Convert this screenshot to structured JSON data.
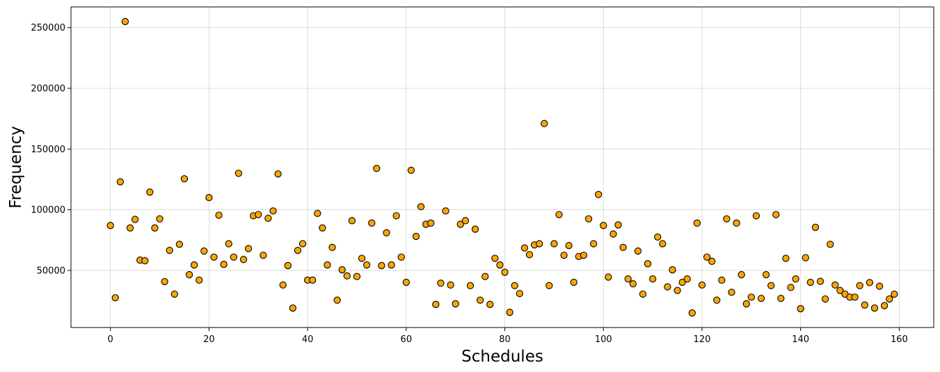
{
  "chart_data": {
    "type": "scatter",
    "title": "",
    "xlabel": "Schedules",
    "ylabel": "Frequency",
    "xlim": [
      -8,
      167
    ],
    "ylim": [
      3000,
      267000
    ],
    "xticks": [
      0,
      20,
      40,
      60,
      80,
      100,
      120,
      140,
      160
    ],
    "yticks": [
      50000,
      100000,
      150000,
      200000,
      250000
    ],
    "xtick_labels": [
      "0",
      "20",
      "40",
      "60",
      "80",
      "100",
      "120",
      "140",
      "160"
    ],
    "ytick_labels": [
      "50000",
      "100000",
      "150000",
      "200000",
      "250000"
    ],
    "grid": true,
    "marker_color": "#FFA500",
    "marker_edge_color": "#000000",
    "series": [
      {
        "x": [
          0,
          1,
          2,
          3,
          4,
          5,
          6,
          7,
          8,
          9,
          10,
          11,
          12,
          13,
          14,
          15,
          16,
          17,
          18,
          19,
          20,
          21,
          22,
          23,
          24,
          25,
          26,
          27,
          28,
          29,
          30,
          31,
          32,
          33,
          34,
          35,
          36,
          37,
          38,
          39,
          40,
          41,
          42,
          43,
          44,
          45,
          46,
          47,
          48,
          49,
          50,
          51,
          52,
          53,
          54,
          55,
          56,
          57,
          58,
          59,
          60,
          61,
          62,
          63,
          64,
          65,
          66,
          67,
          68,
          69,
          70,
          71,
          72,
          73,
          74,
          75,
          76,
          77,
          78,
          79,
          80,
          81,
          82,
          83,
          84,
          85,
          86,
          87,
          88,
          89,
          90,
          91,
          92,
          93,
          94,
          95,
          96,
          97,
          98,
          99,
          100,
          101,
          102,
          103,
          104,
          105,
          106,
          107,
          108,
          109,
          110,
          111,
          112,
          113,
          114,
          115,
          116,
          117,
          118,
          119,
          120,
          121,
          122,
          123,
          124,
          125,
          126,
          127,
          128,
          129,
          130,
          131,
          132,
          133,
          134,
          135,
          136,
          137,
          138,
          139,
          140,
          141,
          142,
          143,
          144,
          145,
          146,
          147,
          148,
          149,
          150,
          151,
          152,
          153,
          154,
          155,
          156,
          157,
          158,
          159
        ],
        "y": [
          87000,
          27500,
          123000,
          255000,
          85000,
          92000,
          58500,
          58000,
          114500,
          85000,
          92500,
          40800,
          66500,
          30500,
          71500,
          125500,
          46500,
          54500,
          42000,
          66000,
          110000,
          61000,
          95500,
          55000,
          72000,
          61000,
          130000,
          59000,
          68000,
          95000,
          96000,
          62500,
          93000,
          99000,
          129500,
          38000,
          54000,
          19000,
          66500,
          72000,
          42000,
          42000,
          97000,
          85000,
          54500,
          69000,
          25500,
          50500,
          45500,
          91000,
          45000,
          60000,
          54500,
          89000,
          134000,
          54000,
          81000,
          54500,
          95000,
          61000,
          40200,
          132500,
          78000,
          102500,
          88000,
          89000,
          22000,
          39500,
          99000,
          38000,
          22500,
          88000,
          91000,
          37500,
          84000,
          25500,
          45000,
          22000,
          60000,
          54500,
          48500,
          15500,
          37500,
          31000,
          68500,
          63000,
          71000,
          72000,
          171000,
          37500,
          72000,
          96000,
          62500,
          70500,
          40200,
          61500,
          62500,
          92500,
          72000,
          112500,
          87000,
          44500,
          80000,
          87500,
          69000,
          43000,
          39000,
          66000,
          30500,
          55500,
          43000,
          77500,
          72000,
          36500,
          50500,
          33500,
          40200,
          43000,
          15000,
          89000,
          38000,
          61000,
          57500,
          25500,
          42000,
          92500,
          32000,
          89000,
          46500,
          22500,
          28000,
          95000,
          27000,
          46500,
          37500,
          96000,
          27000,
          60000,
          36000,
          43000,
          18500,
          60500,
          40200,
          85500,
          41000,
          26500,
          71500,
          38000,
          33500,
          30500,
          28000,
          28000,
          37500,
          21500,
          40000,
          19000,
          37000,
          21000,
          26500,
          30500
        ]
      }
    ]
  }
}
